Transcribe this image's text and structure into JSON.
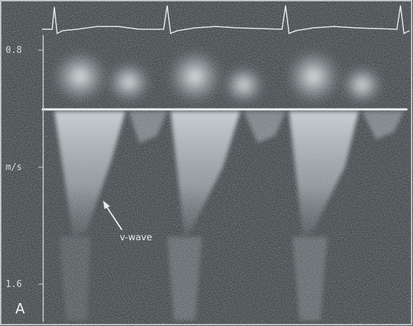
{
  "scale": {
    "top": "0.8",
    "unit": "m/s",
    "bottom": "1.6"
  },
  "annotation": "v-wave",
  "panel_label": "A"
}
